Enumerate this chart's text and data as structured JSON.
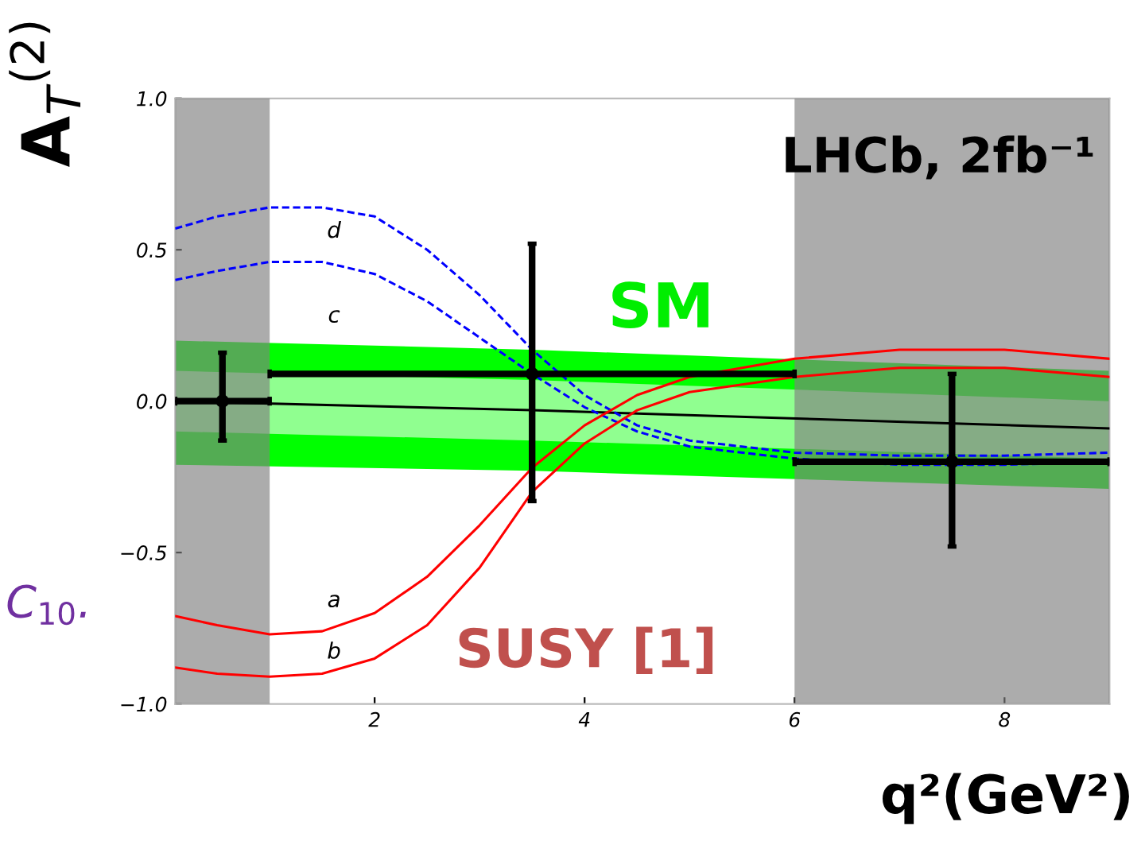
{
  "chart_data": {
    "type": "line",
    "xlabel": "q²(GeV²)",
    "ylabel": "A$_{T}$$^{(2)}$",
    "xlim": [
      0.1,
      9
    ],
    "ylim": [
      -1.0,
      1.0
    ],
    "xticks": [
      2,
      4,
      6,
      8
    ],
    "yticks": [
      {
        "value": -1.0,
        "label": "−1.0"
      },
      {
        "value": -0.5,
        "label": "−0.5"
      },
      {
        "value": 0.0,
        "label": "0.0"
      },
      {
        "value": 0.5,
        "label": "0.5"
      },
      {
        "value": 1.0,
        "label": "1.0"
      }
    ],
    "grid": false,
    "bands": [
      {
        "axis": "x",
        "from": 0.1,
        "to": 1.0,
        "color": "#808080"
      },
      {
        "axis": "x",
        "from": 6.0,
        "to": 9.0,
        "color": "#808080"
      }
    ],
    "series": [
      {
        "color": "#00ff00",
        "x": [
          0.1,
          3.5,
          9.0
        ],
        "values": [
          null,
          null,
          null
        ],
        "lower": [
          -0.21,
          -0.23,
          -0.29
        ],
        "upper": [
          0.2,
          0.17,
          0.1
        ]
      },
      {
        "color": "#90ff90",
        "x": [
          0.1,
          3.5,
          9.0
        ],
        "values": [
          null,
          null,
          null
        ],
        "lower": [
          -0.1,
          -0.13,
          -0.19
        ],
        "upper": [
          0.1,
          0.07,
          0.0
        ]
      },
      {
        "color": "#000000",
        "x": [
          0.1,
          3.5,
          9.0
        ],
        "values": [
          0.0,
          -0.03,
          -0.09
        ]
      },
      {
        "color": "#0000ff",
        "line_style": "dashed",
        "x": [
          0.1,
          0.5,
          1.0,
          1.5,
          2.0,
          2.5,
          3.0,
          3.5,
          4.0,
          4.5,
          5.0,
          6.0,
          7.0,
          8.0,
          9.0
        ],
        "values": [
          0.57,
          0.61,
          0.64,
          0.64,
          0.61,
          0.5,
          0.35,
          0.17,
          0.02,
          -0.08,
          -0.13,
          -0.17,
          -0.18,
          -0.18,
          -0.17
        ]
      },
      {
        "color": "#0000ff",
        "line_style": "dashed",
        "x": [
          0.1,
          0.5,
          1.0,
          1.5,
          2.0,
          2.5,
          3.0,
          3.5,
          4.0,
          4.5,
          5.0,
          6.0,
          7.0,
          8.0,
          9.0
        ],
        "values": [
          0.4,
          0.43,
          0.46,
          0.46,
          0.42,
          0.33,
          0.21,
          0.09,
          -0.02,
          -0.1,
          -0.15,
          -0.19,
          -0.21,
          -0.21,
          -0.2
        ]
      },
      {
        "color": "#ff0000",
        "x": [
          0.1,
          0.5,
          1.0,
          1.5,
          2.0,
          2.5,
          3.0,
          3.5,
          4.0,
          4.5,
          5.0,
          6.0,
          7.0,
          7.5,
          8.0,
          9.0
        ],
        "values": [
          -0.71,
          -0.74,
          -0.77,
          -0.76,
          -0.7,
          -0.58,
          -0.41,
          -0.22,
          -0.08,
          0.02,
          0.08,
          0.14,
          0.17,
          0.17,
          0.17,
          0.14
        ]
      },
      {
        "color": "#ff0000",
        "x": [
          0.1,
          0.5,
          1.0,
          1.5,
          2.0,
          2.5,
          3.0,
          3.5,
          4.0,
          4.5,
          5.0,
          6.0,
          7.0,
          7.5,
          8.0,
          9.0
        ],
        "values": [
          -0.88,
          -0.9,
          -0.91,
          -0.9,
          -0.85,
          -0.74,
          -0.55,
          -0.3,
          -0.14,
          -0.03,
          0.03,
          0.08,
          0.11,
          0.11,
          0.11,
          0.08
        ]
      },
      {
        "type": "scatter",
        "color": "#000000",
        "marker": "circle",
        "x": [
          0.55,
          3.5,
          7.5
        ],
        "values": [
          0.0,
          0.09,
          -0.2
        ],
        "errors": [
          [
            -0.13,
            0.16
          ],
          [
            -0.33,
            0.52
          ],
          [
            -0.48,
            0.09
          ]
        ],
        "xerrors": [
          [
            0.1,
            1.0
          ],
          [
            1.0,
            6.0
          ],
          [
            6.0,
            9.0
          ]
        ]
      }
    ],
    "annotations": [
      "d",
      "c",
      "a",
      "b",
      "SM",
      "SUSY [1]",
      "LHCb, 2fb⁻¹",
      "C$_{10}$."
    ]
  }
}
